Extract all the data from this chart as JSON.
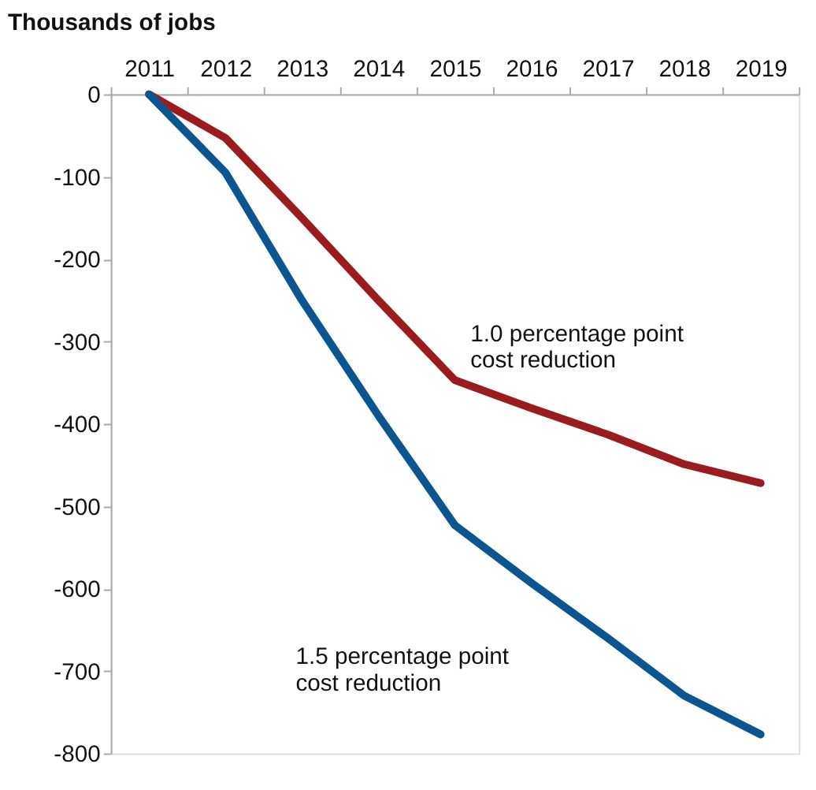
{
  "chart_data": {
    "type": "line",
    "title": "Thousands of jobs",
    "categories": [
      "2011",
      "2012",
      "2013",
      "2014",
      "2015",
      "2016",
      "2017",
      "2018",
      "2019"
    ],
    "series": [
      {
        "name": "1.0 percentage point\ncost reduction",
        "color": "#9b1c1f",
        "values": [
          0,
          -53,
          -150,
          -250,
          -347,
          -381,
          -413,
          -449,
          -472
        ]
      },
      {
        "name": "1.5 percentage point\ncost reduction",
        "color": "#0b5690",
        "values": [
          0,
          -95,
          -250,
          -390,
          -523,
          -593,
          -660,
          -730,
          -777
        ]
      }
    ],
    "ylim": [
      -800,
      0
    ],
    "yticks": [
      0,
      -100,
      -200,
      -300,
      -400,
      -500,
      -600,
      -700,
      -800
    ],
    "grid": false,
    "legend": false,
    "marker": "none",
    "line_style": "solid"
  }
}
